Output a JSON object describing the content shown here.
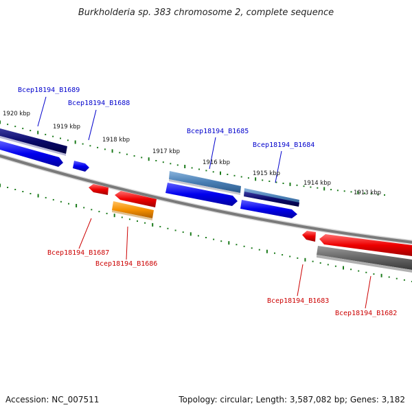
{
  "title": "Burkholderia sp. 383 chromosome 2, complete sequence",
  "footer": {
    "accession": "Accession: NC_007511",
    "topology": "Topology: circular; Length: 3,587,082 bp; Genes: 3,182"
  },
  "colors": {
    "forward_label": "#0000cc",
    "reverse_label": "#cc0000",
    "ticks": "#1a7a1a",
    "backbone": "#808080"
  },
  "kbp_ticks": [
    "1920 kbp",
    "1919 kbp",
    "1918 kbp",
    "1917 kbp",
    "1916 kbp",
    "1915 kbp",
    "1914 kbp",
    "1913 kbp"
  ],
  "gene_labels": {
    "b1689": "Bcep18194_B1689",
    "b1688": "Bcep18194_B1688",
    "b1685": "Bcep18194_B1685",
    "b1684": "Bcep18194_B1684",
    "b1687": "Bcep18194_B1687",
    "b1686": "Bcep18194_B1686",
    "b1683": "Bcep18194_B1683",
    "b1682": "Bcep18194_B1682"
  }
}
